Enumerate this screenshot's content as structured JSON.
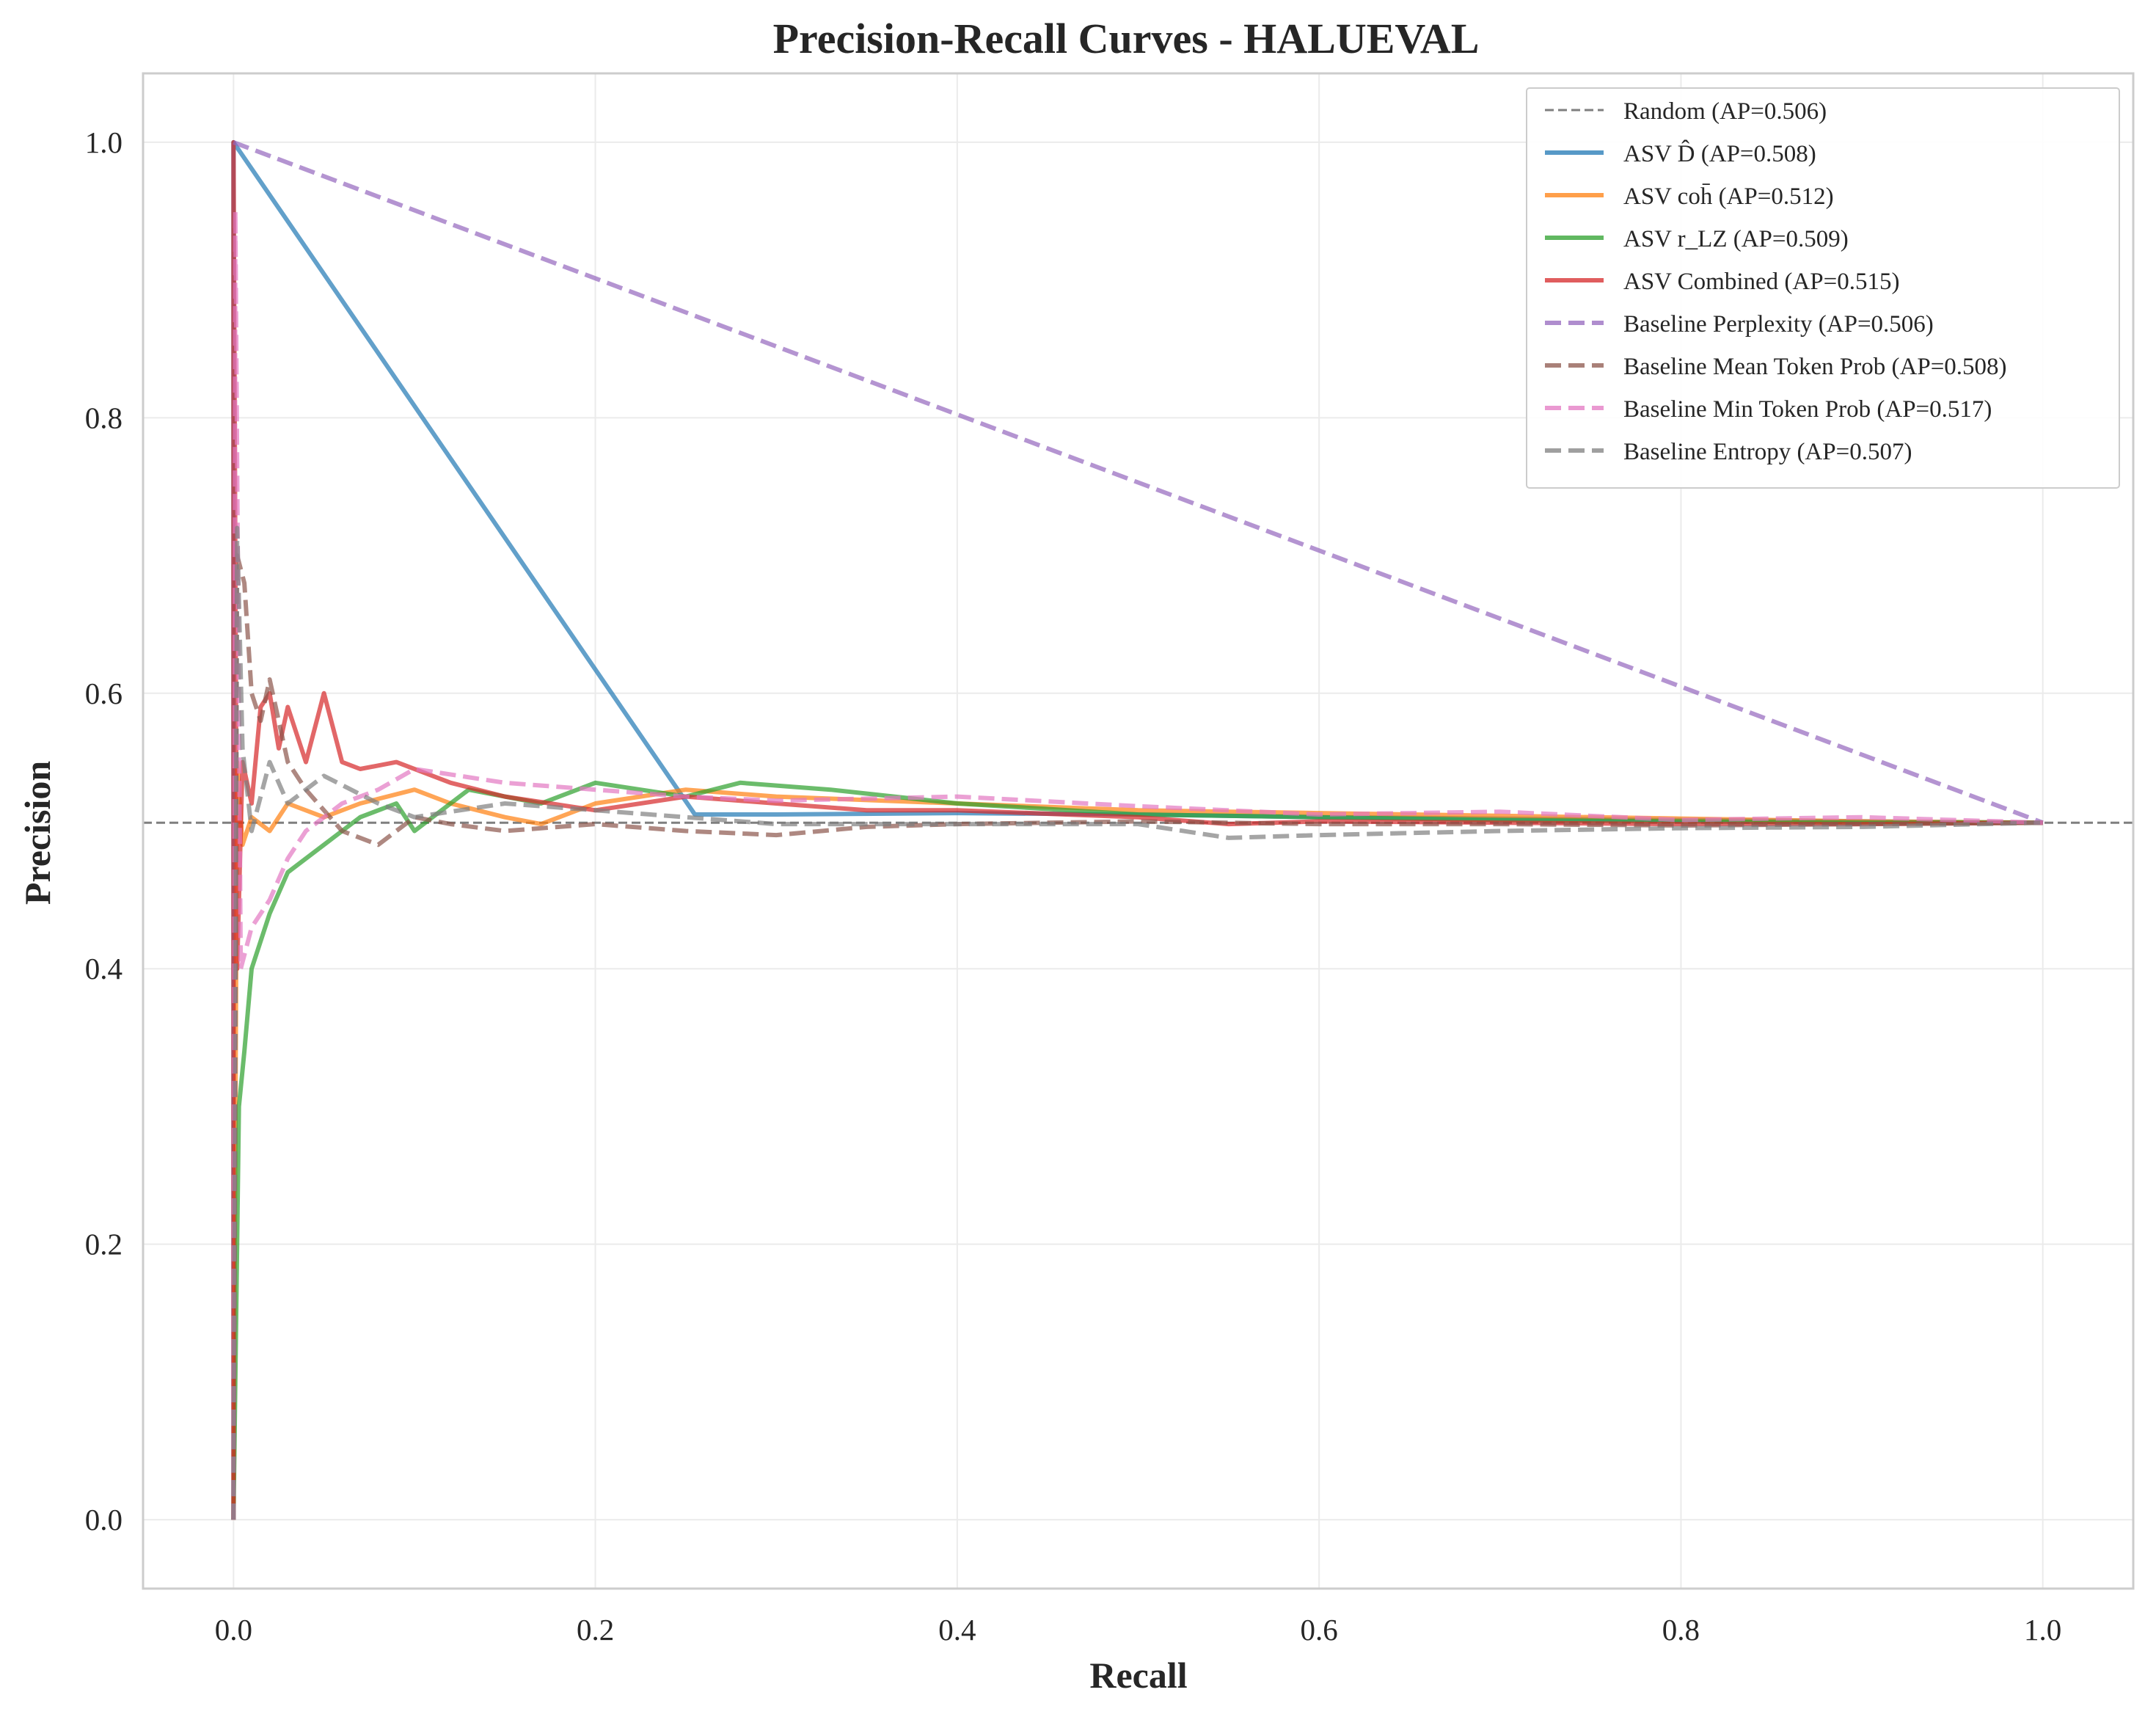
{
  "chart_data": {
    "type": "line",
    "title": "Precision-Recall Curves - HALUEVAL",
    "xlabel": "Recall",
    "ylabel": "Precision",
    "xlim": [
      -0.05,
      1.05
    ],
    "ylim": [
      -0.05,
      1.05
    ],
    "xticks": [
      "0.0",
      "0.2",
      "0.4",
      "0.6",
      "0.8",
      "1.0"
    ],
    "yticks": [
      "0.0",
      "0.2",
      "0.4",
      "0.6",
      "0.8",
      "1.0"
    ],
    "grid": true,
    "legend_position": "top-right",
    "reference_line": {
      "name": "Random (AP=0.506)",
      "y": 0.506,
      "color": "#7f7f7f",
      "style": "dashed-thin"
    },
    "series": [
      {
        "name": "ASV D̂ (AP=0.508)",
        "color": "#1f77b4",
        "style": "solid",
        "points": [
          [
            0.0,
            0.0
          ],
          [
            0.0,
            1.0
          ],
          [
            0.255,
            0.512
          ],
          [
            0.3,
            0.512
          ],
          [
            0.4,
            0.513
          ],
          [
            0.5,
            0.512
          ],
          [
            0.6,
            0.51
          ],
          [
            0.7,
            0.509
          ],
          [
            0.8,
            0.508
          ],
          [
            0.9,
            0.507
          ],
          [
            1.0,
            0.506
          ]
        ]
      },
      {
        "name": "ASV coh̄ (AP=0.512)",
        "color": "#ff7f0e",
        "style": "solid",
        "points": [
          [
            0.0,
            0.0
          ],
          [
            0.002,
            0.55
          ],
          [
            0.005,
            0.49
          ],
          [
            0.01,
            0.51
          ],
          [
            0.02,
            0.5
          ],
          [
            0.03,
            0.52
          ],
          [
            0.05,
            0.51
          ],
          [
            0.07,
            0.52
          ],
          [
            0.1,
            0.53
          ],
          [
            0.12,
            0.52
          ],
          [
            0.15,
            0.51
          ],
          [
            0.17,
            0.505
          ],
          [
            0.2,
            0.52
          ],
          [
            0.25,
            0.53
          ],
          [
            0.3,
            0.525
          ],
          [
            0.4,
            0.52
          ],
          [
            0.5,
            0.515
          ],
          [
            0.6,
            0.513
          ],
          [
            0.7,
            0.511
          ],
          [
            0.8,
            0.509
          ],
          [
            0.9,
            0.507
          ],
          [
            1.0,
            0.506
          ]
        ]
      },
      {
        "name": "ASV r_LZ (AP=0.509)",
        "color": "#2ca02c",
        "style": "solid",
        "points": [
          [
            0.0,
            0.0
          ],
          [
            0.003,
            0.3
          ],
          [
            0.006,
            0.34
          ],
          [
            0.01,
            0.4
          ],
          [
            0.02,
            0.44
          ],
          [
            0.03,
            0.47
          ],
          [
            0.05,
            0.49
          ],
          [
            0.07,
            0.51
          ],
          [
            0.09,
            0.52
          ],
          [
            0.1,
            0.5
          ],
          [
            0.13,
            0.53
          ],
          [
            0.17,
            0.52
          ],
          [
            0.2,
            0.535
          ],
          [
            0.25,
            0.525
          ],
          [
            0.28,
            0.535
          ],
          [
            0.33,
            0.53
          ],
          [
            0.4,
            0.52
          ],
          [
            0.5,
            0.512
          ],
          [
            0.6,
            0.51
          ],
          [
            0.7,
            0.508
          ],
          [
            0.8,
            0.507
          ],
          [
            0.9,
            0.506
          ],
          [
            1.0,
            0.506
          ]
        ]
      },
      {
        "name": "ASV Combined (AP=0.515)",
        "color": "#d62728",
        "style": "solid",
        "points": [
          [
            0.0,
            0.0
          ],
          [
            0.0,
            1.0
          ],
          [
            0.002,
            0.4
          ],
          [
            0.005,
            0.55
          ],
          [
            0.01,
            0.52
          ],
          [
            0.015,
            0.59
          ],
          [
            0.02,
            0.6
          ],
          [
            0.025,
            0.56
          ],
          [
            0.03,
            0.59
          ],
          [
            0.04,
            0.55
          ],
          [
            0.05,
            0.6
          ],
          [
            0.06,
            0.55
          ],
          [
            0.07,
            0.545
          ],
          [
            0.09,
            0.55
          ],
          [
            0.12,
            0.535
          ],
          [
            0.15,
            0.525
          ],
          [
            0.2,
            0.515
          ],
          [
            0.25,
            0.525
          ],
          [
            0.3,
            0.52
          ],
          [
            0.35,
            0.515
          ],
          [
            0.4,
            0.515
          ],
          [
            0.5,
            0.51
          ],
          [
            0.55,
            0.505
          ],
          [
            0.6,
            0.507
          ],
          [
            0.7,
            0.506
          ],
          [
            0.8,
            0.505
          ],
          [
            0.9,
            0.505
          ],
          [
            1.0,
            0.506
          ]
        ]
      },
      {
        "name": "Baseline Perplexity (AP=0.506)",
        "color": "#9467bd",
        "style": "dashed",
        "points": [
          [
            0.0,
            1.0
          ],
          [
            1.0,
            0.506
          ]
        ]
      },
      {
        "name": "Baseline Mean Token Prob (AP=0.508)",
        "color": "#8c564b",
        "style": "dashed",
        "points": [
          [
            0.0,
            0.0
          ],
          [
            0.002,
            0.7
          ],
          [
            0.006,
            0.68
          ],
          [
            0.01,
            0.6
          ],
          [
            0.015,
            0.58
          ],
          [
            0.02,
            0.61
          ],
          [
            0.03,
            0.55
          ],
          [
            0.04,
            0.53
          ],
          [
            0.06,
            0.5
          ],
          [
            0.08,
            0.49
          ],
          [
            0.1,
            0.51
          ],
          [
            0.12,
            0.505
          ],
          [
            0.15,
            0.5
          ],
          [
            0.2,
            0.505
          ],
          [
            0.25,
            0.5
          ],
          [
            0.3,
            0.497
          ],
          [
            0.35,
            0.503
          ],
          [
            0.4,
            0.505
          ],
          [
            0.5,
            0.507
          ],
          [
            0.6,
            0.505
          ],
          [
            0.7,
            0.505
          ],
          [
            0.8,
            0.504
          ],
          [
            0.9,
            0.505
          ],
          [
            1.0,
            0.506
          ]
        ]
      },
      {
        "name": "Baseline Min Token Prob (AP=0.517)",
        "color": "#e377c2",
        "style": "dashed",
        "points": [
          [
            0.0,
            0.0
          ],
          [
            0.001,
            0.95
          ],
          [
            0.004,
            0.4
          ],
          [
            0.01,
            0.43
          ],
          [
            0.02,
            0.45
          ],
          [
            0.03,
            0.48
          ],
          [
            0.04,
            0.5
          ],
          [
            0.06,
            0.52
          ],
          [
            0.08,
            0.53
          ],
          [
            0.1,
            0.545
          ],
          [
            0.15,
            0.535
          ],
          [
            0.2,
            0.53
          ],
          [
            0.25,
            0.525
          ],
          [
            0.3,
            0.522
          ],
          [
            0.4,
            0.525
          ],
          [
            0.5,
            0.518
          ],
          [
            0.6,
            0.512
          ],
          [
            0.7,
            0.514
          ],
          [
            0.8,
            0.508
          ],
          [
            0.9,
            0.51
          ],
          [
            1.0,
            0.506
          ]
        ]
      },
      {
        "name": "Baseline Entropy (AP=0.507)",
        "color": "#7f7f7f",
        "style": "dashed",
        "points": [
          [
            0.0,
            0.0
          ],
          [
            0.002,
            0.72
          ],
          [
            0.005,
            0.56
          ],
          [
            0.01,
            0.5
          ],
          [
            0.02,
            0.55
          ],
          [
            0.03,
            0.52
          ],
          [
            0.05,
            0.54
          ],
          [
            0.08,
            0.52
          ],
          [
            0.1,
            0.51
          ],
          [
            0.15,
            0.52
          ],
          [
            0.2,
            0.515
          ],
          [
            0.25,
            0.51
          ],
          [
            0.3,
            0.505
          ],
          [
            0.4,
            0.505
          ],
          [
            0.5,
            0.505
          ],
          [
            0.55,
            0.495
          ],
          [
            0.6,
            0.497
          ],
          [
            0.7,
            0.5
          ],
          [
            0.8,
            0.502
          ],
          [
            0.9,
            0.503
          ],
          [
            1.0,
            0.506
          ]
        ]
      }
    ]
  }
}
